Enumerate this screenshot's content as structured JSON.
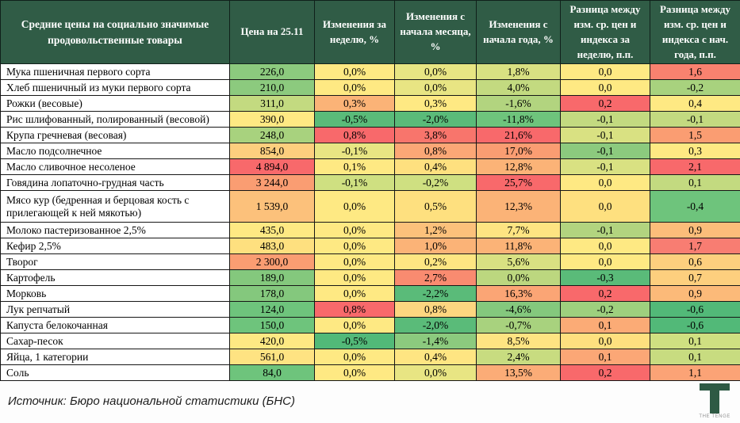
{
  "header": {
    "title": "Средние цены на социально значимые продовольственные товары",
    "columns": [
      "Цена на 25.11",
      "Изменения за неделю, %",
      "Изменения с начала месяца, %",
      "Изменения с начала года, %",
      "Разница между изм. ср. цен и индекса за неделю, п.п.",
      "Разница между изм. ср. цен и индекса с нач. года, п.п."
    ]
  },
  "colors": {
    "header_bg": "#305c46",
    "logo_green": "#2e5a44",
    "scale_green": "#5abb79",
    "scale_yellow": "#fee983",
    "scale_red": "#f8696b"
  },
  "table": {
    "cell_keys": [
      "price",
      "week-change",
      "month-change",
      "year-change",
      "diff-week",
      "diff-year"
    ],
    "rows": [
      {
        "name": "Мука пшеничная первого сорта",
        "tall": false,
        "cells": [
          {
            "v": "226,0",
            "bg": "#8cca7e"
          },
          {
            "v": "0,0%",
            "bg": "#fee983"
          },
          {
            "v": "0,0%",
            "bg": "#e8e583"
          },
          {
            "v": "1,8%",
            "bg": "#d9e182"
          },
          {
            "v": "0,0",
            "bg": "#fee983"
          },
          {
            "v": "1,6",
            "bg": "#f8826f"
          }
        ]
      },
      {
        "name": "Хлеб пшеничный из муки первого сорта",
        "tall": false,
        "cells": [
          {
            "v": "210,0",
            "bg": "#8cca7e"
          },
          {
            "v": "0,0%",
            "bg": "#fee983"
          },
          {
            "v": "0,0%",
            "bg": "#e8e583"
          },
          {
            "v": "4,0%",
            "bg": "#c3da80"
          },
          {
            "v": "0,0",
            "bg": "#fee983"
          },
          {
            "v": "-0,2",
            "bg": "#a8d27e"
          }
        ]
      },
      {
        "name": "Рожки (весовые)",
        "tall": false,
        "cells": [
          {
            "v": "311,0",
            "bg": "#c3da80"
          },
          {
            "v": "0,3%",
            "bg": "#fbb377"
          },
          {
            "v": "0,3%",
            "bg": "#fee983"
          },
          {
            "v": "-1,6%",
            "bg": "#b2d47f"
          },
          {
            "v": "0,2",
            "bg": "#f8696b"
          },
          {
            "v": "0,4",
            "bg": "#fee983"
          }
        ]
      },
      {
        "name": "Рис шлифованный, полированный (весовой)",
        "tall": false,
        "cells": [
          {
            "v": "390,0",
            "bg": "#fee983"
          },
          {
            "v": "-0,5%",
            "bg": "#5abb79"
          },
          {
            "v": "-2,0%",
            "bg": "#5abb79"
          },
          {
            "v": "-11,8%",
            "bg": "#6ec47c"
          },
          {
            "v": "-0,1",
            "bg": "#c3da80"
          },
          {
            "v": "-0,1",
            "bg": "#c3da80"
          }
        ]
      },
      {
        "name": "Крупа гречневая (весовая)",
        "tall": false,
        "cells": [
          {
            "v": "248,0",
            "bg": "#a8d27e"
          },
          {
            "v": "0,8%",
            "bg": "#f8696b"
          },
          {
            "v": "3,8%",
            "bg": "#f8756c"
          },
          {
            "v": "21,6%",
            "bg": "#f8696b"
          },
          {
            "v": "-0,1",
            "bg": "#d9e182"
          },
          {
            "v": "1,5",
            "bg": "#fa9d72"
          }
        ]
      },
      {
        "name": "Масло подсолнечное",
        "tall": false,
        "cells": [
          {
            "v": "854,0",
            "bg": "#fdcf7e"
          },
          {
            "v": "-0,1%",
            "bg": "#e8e583"
          },
          {
            "v": "0,8%",
            "bg": "#fba776"
          },
          {
            "v": "17,0%",
            "bg": "#fa9d72"
          },
          {
            "v": "-0,1",
            "bg": "#8cca7e"
          },
          {
            "v": "0,3",
            "bg": "#fee983"
          }
        ]
      },
      {
        "name": "Масло сливочное несоленое",
        "tall": false,
        "cells": [
          {
            "v": "4 894,0",
            "bg": "#f8696b"
          },
          {
            "v": "0,1%",
            "bg": "#fee983"
          },
          {
            "v": "0,4%",
            "bg": "#fee07f"
          },
          {
            "v": "12,8%",
            "bg": "#fbb377"
          },
          {
            "v": "-0,1",
            "bg": "#d9e182"
          },
          {
            "v": "2,1",
            "bg": "#f8696b"
          }
        ]
      },
      {
        "name": "Говядина лопаточно-грудная часть",
        "tall": false,
        "cells": [
          {
            "v": "3 244,0",
            "bg": "#fa9d72"
          },
          {
            "v": "-0,1%",
            "bg": "#cfe081"
          },
          {
            "v": "-0,2%",
            "bg": "#cfe081"
          },
          {
            "v": "25,7%",
            "bg": "#f8696b"
          },
          {
            "v": "0,0",
            "bg": "#fee983"
          },
          {
            "v": "0,1",
            "bg": "#c3da80"
          }
        ]
      },
      {
        "name": "Мясо кур (бедренная и берцовая кость с прилегающей к ней мякотью)",
        "tall": true,
        "cells": [
          {
            "v": "1 539,0",
            "bg": "#fcc17b"
          },
          {
            "v": "0,0%",
            "bg": "#fee983"
          },
          {
            "v": "0,5%",
            "bg": "#fee07f"
          },
          {
            "v": "12,3%",
            "bg": "#fbb377"
          },
          {
            "v": "0,0",
            "bg": "#fee07f"
          },
          {
            "v": "-0,4",
            "bg": "#6ec47c"
          }
        ]
      },
      {
        "name": "Молоко пастеризованное 2,5%",
        "tall": false,
        "cells": [
          {
            "v": "435,0",
            "bg": "#fee983"
          },
          {
            "v": "0,0%",
            "bg": "#fee983"
          },
          {
            "v": "1,2%",
            "bg": "#fcc17b"
          },
          {
            "v": "7,7%",
            "bg": "#fee482"
          },
          {
            "v": "-0,1",
            "bg": "#b2d47f"
          },
          {
            "v": "0,9",
            "bg": "#fcbd7a"
          }
        ]
      },
      {
        "name": "Кефир 2,5%",
        "tall": false,
        "cells": [
          {
            "v": "483,0",
            "bg": "#fee07f"
          },
          {
            "v": "0,0%",
            "bg": "#fee983"
          },
          {
            "v": "1,0%",
            "bg": "#fbb377"
          },
          {
            "v": "11,8%",
            "bg": "#fbb377"
          },
          {
            "v": "0,0",
            "bg": "#fee983"
          },
          {
            "v": "1,7",
            "bg": "#f87d72"
          }
        ]
      },
      {
        "name": "Творог",
        "tall": false,
        "cells": [
          {
            "v": "2 300,0",
            "bg": "#fa9d72"
          },
          {
            "v": "0,0%",
            "bg": "#fee983"
          },
          {
            "v": "0,2%",
            "bg": "#fee682"
          },
          {
            "v": "5,6%",
            "bg": "#d9e182"
          },
          {
            "v": "0,0",
            "bg": "#fee983"
          },
          {
            "v": "0,6",
            "bg": "#fdcf7e"
          }
        ]
      },
      {
        "name": "Картофель",
        "tall": false,
        "cells": [
          {
            "v": "189,0",
            "bg": "#84c87d"
          },
          {
            "v": "0,0%",
            "bg": "#fee983"
          },
          {
            "v": "2,7%",
            "bg": "#f98b70"
          },
          {
            "v": "0,0%",
            "bg": "#bcd77f"
          },
          {
            "v": "-0,3",
            "bg": "#5abb79"
          },
          {
            "v": "0,7",
            "bg": "#fdcf7e"
          }
        ]
      },
      {
        "name": "Морковь",
        "tall": false,
        "cells": [
          {
            "v": "178,0",
            "bg": "#84c87d"
          },
          {
            "v": "0,0%",
            "bg": "#fee983"
          },
          {
            "v": "-2,2%",
            "bg": "#5abb79"
          },
          {
            "v": "16,3%",
            "bg": "#fba575"
          },
          {
            "v": "0,2",
            "bg": "#f8696b"
          },
          {
            "v": "0,9",
            "bg": "#fcba79"
          }
        ]
      },
      {
        "name": "Лук репчатый",
        "tall": false,
        "cells": [
          {
            "v": "124,0",
            "bg": "#6ec47c"
          },
          {
            "v": "0,8%",
            "bg": "#f8696b"
          },
          {
            "v": "0,8%",
            "bg": "#fdd680"
          },
          {
            "v": "-4,6%",
            "bg": "#84c87d"
          },
          {
            "v": "-0,2",
            "bg": "#9ed07e"
          },
          {
            "v": "-0,6",
            "bg": "#52b978"
          }
        ]
      },
      {
        "name": "Капуста белокочанная",
        "tall": false,
        "cells": [
          {
            "v": "150,0",
            "bg": "#6ec47c"
          },
          {
            "v": "0,0%",
            "bg": "#fee983"
          },
          {
            "v": "-2,0%",
            "bg": "#5abb79"
          },
          {
            "v": "-0,7%",
            "bg": "#a8d27e"
          },
          {
            "v": "0,1",
            "bg": "#fbab76"
          },
          {
            "v": "-0,6",
            "bg": "#52b978"
          }
        ]
      },
      {
        "name": "Сахар-песок",
        "tall": false,
        "cells": [
          {
            "v": "420,0",
            "bg": "#fee983"
          },
          {
            "v": "-0,5%",
            "bg": "#52b978"
          },
          {
            "v": "-1,4%",
            "bg": "#8cca7e"
          },
          {
            "v": "8,5%",
            "bg": "#fee482"
          },
          {
            "v": "0,0",
            "bg": "#fee07f"
          },
          {
            "v": "0,1",
            "bg": "#cfe081"
          }
        ]
      },
      {
        "name": "Яйца, 1 категории",
        "tall": false,
        "cells": [
          {
            "v": "561,0",
            "bg": "#fee382"
          },
          {
            "v": "0,0%",
            "bg": "#fee983"
          },
          {
            "v": "0,4%",
            "bg": "#fee582"
          },
          {
            "v": "2,4%",
            "bg": "#c8dc80"
          },
          {
            "v": "0,1",
            "bg": "#fba776"
          },
          {
            "v": "0,1",
            "bg": "#c8dc80"
          }
        ]
      },
      {
        "name": "Соль",
        "tall": false,
        "cells": [
          {
            "v": "84,0",
            "bg": "#6ec47c"
          },
          {
            "v": "0,0%",
            "bg": "#fee983"
          },
          {
            "v": "0,0%",
            "bg": "#e8e583"
          },
          {
            "v": "13,5%",
            "bg": "#fbac77"
          },
          {
            "v": "0,2",
            "bg": "#f8696b"
          },
          {
            "v": "1,1",
            "bg": "#fba376"
          }
        ]
      }
    ]
  },
  "chart_data": {
    "type": "heatmap",
    "title": "Средние цены на социально значимые продовольственные товары",
    "columns": [
      "Цена на 25.11",
      "Изменения за неделю, %",
      "Изменения с начала месяца, %",
      "Изменения с начала года, %",
      "Разница между изм. ср. цен и индекса за неделю, п.п.",
      "Разница между изм. ср. цен и индекса с нач. года, п.п."
    ],
    "rows": [
      "Мука пшеничная первого сорта",
      "Хлеб пшеничный из муки первого сорта",
      "Рожки (весовые)",
      "Рис шлифованный, полированный (весовой)",
      "Крупа гречневая (весовая)",
      "Масло подсолнечное",
      "Масло сливочное несоленое",
      "Говядина лопаточно-грудная часть",
      "Мясо кур (бедренная и берцовая кость с прилегающей к ней мякотью)",
      "Молоко пастеризованное 2,5%",
      "Кефир 2,5%",
      "Творог",
      "Картофель",
      "Морковь",
      "Лук репчатый",
      "Капуста белокочанная",
      "Сахар-песок",
      "Яйца, 1 категории",
      "Соль"
    ],
    "values": [
      [
        226.0,
        0.0,
        0.0,
        1.8,
        0.0,
        1.6
      ],
      [
        210.0,
        0.0,
        0.0,
        4.0,
        0.0,
        -0.2
      ],
      [
        311.0,
        0.3,
        0.3,
        -1.6,
        0.2,
        0.4
      ],
      [
        390.0,
        -0.5,
        -2.0,
        -11.8,
        -0.1,
        -0.1
      ],
      [
        248.0,
        0.8,
        3.8,
        21.6,
        -0.1,
        1.5
      ],
      [
        854.0,
        -0.1,
        0.8,
        17.0,
        -0.1,
        0.3
      ],
      [
        4894.0,
        0.1,
        0.4,
        12.8,
        -0.1,
        2.1
      ],
      [
        3244.0,
        -0.1,
        -0.2,
        25.7,
        0.0,
        0.1
      ],
      [
        1539.0,
        0.0,
        0.5,
        12.3,
        0.0,
        -0.4
      ],
      [
        435.0,
        0.0,
        1.2,
        7.7,
        -0.1,
        0.9
      ],
      [
        483.0,
        0.0,
        1.0,
        11.8,
        0.0,
        1.7
      ],
      [
        2300.0,
        0.0,
        0.2,
        5.6,
        0.0,
        0.6
      ],
      [
        189.0,
        0.0,
        2.7,
        0.0,
        -0.3,
        0.7
      ],
      [
        178.0,
        0.0,
        -2.2,
        16.3,
        0.2,
        0.9
      ],
      [
        124.0,
        0.8,
        0.8,
        -4.6,
        -0.2,
        -0.6
      ],
      [
        150.0,
        0.0,
        -2.0,
        -0.7,
        0.1,
        -0.6
      ],
      [
        420.0,
        -0.5,
        -1.4,
        8.5,
        0.0,
        0.1
      ],
      [
        561.0,
        0.0,
        0.4,
        2.4,
        0.1,
        0.1
      ],
      [
        84.0,
        0.0,
        0.0,
        13.5,
        0.2,
        1.1
      ]
    ],
    "color_scale": {
      "min": "#5abb79",
      "mid": "#fee983",
      "max": "#f8696b"
    },
    "legend_position": "none",
    "grid": true
  },
  "footer": {
    "source": "Источник: Бюро национальной статистики (БНС)",
    "logo_text": "THE TENGE"
  }
}
